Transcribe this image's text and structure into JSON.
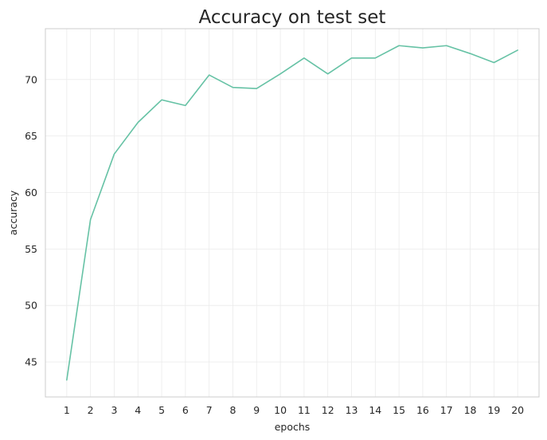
{
  "chart_data": {
    "type": "line",
    "title": "Accuracy on test set",
    "xlabel": "epochs",
    "ylabel": "accuracy",
    "x": [
      1,
      2,
      3,
      4,
      5,
      6,
      7,
      8,
      9,
      10,
      11,
      12,
      13,
      14,
      15,
      16,
      17,
      18,
      19,
      20
    ],
    "series": [
      {
        "values": [
          43.4,
          57.6,
          63.4,
          66.2,
          68.2,
          67.7,
          70.4,
          69.3,
          69.2,
          70.5,
          71.9,
          70.5,
          71.9,
          71.9,
          73.0,
          72.8,
          73.0,
          72.3,
          71.5,
          72.6
        ],
        "color": "#66c2a5"
      }
    ],
    "xlim": [
      0.1,
      20.9
    ],
    "ylim": [
      41.9,
      74.5
    ],
    "xticks": [
      1,
      2,
      3,
      4,
      5,
      6,
      7,
      8,
      9,
      10,
      11,
      12,
      13,
      14,
      15,
      16,
      17,
      18,
      19,
      20
    ],
    "yticks": [
      45,
      50,
      55,
      60,
      65,
      70
    ],
    "grid": true,
    "colors": {
      "line": "#66c2a5",
      "grid": "#ebebeb",
      "spine": "#cccccc",
      "text": "#262626"
    }
  }
}
